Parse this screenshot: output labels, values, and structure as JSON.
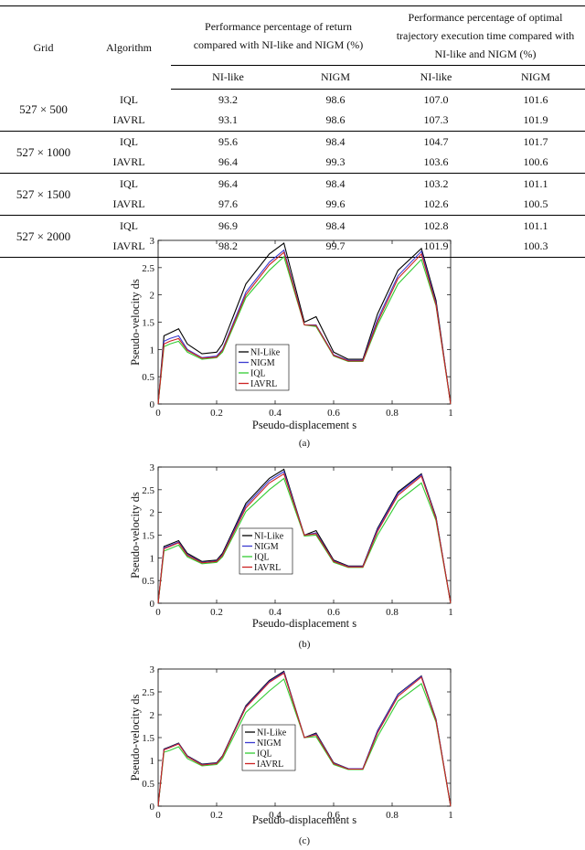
{
  "table": {
    "col_grid": "Grid",
    "col_algorithm": "Algorithm",
    "col_return": "Performance percentage of return compared with NI-like and NIGM (%)",
    "col_time": "Performance percentage of optimal trajectory execution time compared with NI-like and NIGM (%)",
    "sub_nilike_1": "NI-like",
    "sub_nigm_1": "NIGM",
    "sub_nilike_2": "NI-like",
    "sub_nigm_2": "NIGM",
    "groups": [
      {
        "grid": "527 × 500",
        "rows": [
          {
            "alg": "IQL",
            "r1": "93.2",
            "r2": "98.6",
            "t1": "107.0",
            "t2": "101.6"
          },
          {
            "alg": "IAVRL",
            "r1": "93.1",
            "r2": "98.6",
            "t1": "107.3",
            "t2": "101.9"
          }
        ]
      },
      {
        "grid": "527 × 1000",
        "rows": [
          {
            "alg": "IQL",
            "r1": "95.6",
            "r2": "98.4",
            "t1": "104.7",
            "t2": "101.7"
          },
          {
            "alg": "IAVRL",
            "r1": "96.4",
            "r2": "99.3",
            "t1": "103.6",
            "t2": "100.6"
          }
        ]
      },
      {
        "grid": "527 × 1500",
        "rows": [
          {
            "alg": "IQL",
            "r1": "96.4",
            "r2": "98.4",
            "t1": "103.2",
            "t2": "101.1"
          },
          {
            "alg": "IAVRL",
            "r1": "97.6",
            "r2": "99.6",
            "t1": "102.6",
            "t2": "100.5"
          }
        ]
      },
      {
        "grid": "527 × 2000",
        "rows": [
          {
            "alg": "IQL",
            "r1": "96.9",
            "r2": "98.4",
            "t1": "102.8",
            "t2": "101.1"
          },
          {
            "alg": "IAVRL",
            "r1": "98.2",
            "r2": "99.7",
            "t1": "101.9",
            "t2": "100.3"
          }
        ]
      }
    ]
  },
  "chart_data": [
    {
      "type": "line",
      "caption": "(a)",
      "xlabel": "Pseudo-displacement s",
      "ylabel": "Pseudo-velocity ds",
      "xlim": [
        0,
        1
      ],
      "ylim": [
        0,
        3
      ],
      "xticks": [
        "0",
        "0.2",
        "0.4",
        "0.6",
        "0.8",
        "1"
      ],
      "yticks": [
        "0",
        "0.5",
        "1",
        "1.5",
        "2",
        "2.5",
        "3"
      ],
      "legend_position": "left-center",
      "series": [
        {
          "name": "NI-Like",
          "color": "#000000",
          "x": [
            0,
            0.02,
            0.04,
            0.07,
            0.1,
            0.15,
            0.2,
            0.22,
            0.3,
            0.38,
            0.43,
            0.5,
            0.54,
            0.6,
            0.65,
            0.7,
            0.75,
            0.82,
            0.9,
            0.95,
            1
          ],
          "y": [
            0,
            1.25,
            1.3,
            1.38,
            1.1,
            0.92,
            0.95,
            1.1,
            2.2,
            2.75,
            2.95,
            1.5,
            1.6,
            0.95,
            0.82,
            0.82,
            1.65,
            2.45,
            2.85,
            1.9,
            0
          ]
        },
        {
          "name": "NIGM",
          "color": "#3a3ad0",
          "x": [
            0,
            0.02,
            0.04,
            0.07,
            0.1,
            0.15,
            0.2,
            0.22,
            0.3,
            0.38,
            0.43,
            0.5,
            0.54,
            0.6,
            0.65,
            0.7,
            0.75,
            0.82,
            0.9,
            0.95,
            1
          ],
          "y": [
            0,
            1.15,
            1.2,
            1.25,
            1.0,
            0.85,
            0.88,
            1.0,
            2.05,
            2.6,
            2.82,
            1.45,
            1.45,
            0.9,
            0.8,
            0.8,
            1.55,
            2.35,
            2.8,
            1.85,
            0
          ]
        },
        {
          "name": "IQL",
          "color": "#33cc33",
          "x": [
            0,
            0.02,
            0.04,
            0.07,
            0.1,
            0.15,
            0.2,
            0.22,
            0.3,
            0.38,
            0.43,
            0.5,
            0.54,
            0.6,
            0.65,
            0.7,
            0.75,
            0.82,
            0.9,
            0.95,
            1
          ],
          "y": [
            0,
            1.05,
            1.1,
            1.15,
            0.95,
            0.82,
            0.85,
            0.95,
            1.95,
            2.45,
            2.7,
            1.45,
            1.42,
            0.88,
            0.78,
            0.78,
            1.45,
            2.2,
            2.65,
            1.8,
            0
          ]
        },
        {
          "name": "IAVRL",
          "color": "#cc2222",
          "x": [
            0,
            0.02,
            0.04,
            0.07,
            0.1,
            0.15,
            0.2,
            0.22,
            0.3,
            0.38,
            0.43,
            0.5,
            0.54,
            0.6,
            0.65,
            0.7,
            0.75,
            0.82,
            0.9,
            0.95,
            1
          ],
          "y": [
            0,
            1.1,
            1.15,
            1.2,
            0.98,
            0.84,
            0.86,
            0.98,
            2.0,
            2.55,
            2.78,
            1.45,
            1.44,
            0.89,
            0.79,
            0.79,
            1.5,
            2.3,
            2.75,
            1.82,
            0
          ]
        }
      ]
    },
    {
      "type": "line",
      "caption": "(b)",
      "xlabel": "Pseudo-displacement s",
      "ylabel": "Pseudo-velocity ds",
      "xlim": [
        0,
        1
      ],
      "ylim": [
        0,
        3
      ],
      "xticks": [
        "0",
        "0.2",
        "0.4",
        "0.6",
        "0.8",
        "1"
      ],
      "yticks": [
        "0",
        "0.5",
        "1",
        "1.5",
        "2",
        "2.5",
        "3"
      ],
      "legend_position": "left-center",
      "series": [
        {
          "name": "NI-Like",
          "color": "#000000",
          "x": [
            0,
            0.02,
            0.04,
            0.07,
            0.1,
            0.15,
            0.2,
            0.22,
            0.3,
            0.38,
            0.43,
            0.5,
            0.54,
            0.6,
            0.65,
            0.7,
            0.75,
            0.82,
            0.9,
            0.95,
            1
          ],
          "y": [
            0,
            1.25,
            1.3,
            1.38,
            1.1,
            0.92,
            0.95,
            1.1,
            2.2,
            2.75,
            2.95,
            1.5,
            1.6,
            0.95,
            0.82,
            0.82,
            1.65,
            2.45,
            2.85,
            1.9,
            0
          ]
        },
        {
          "name": "NIGM",
          "color": "#3a3ad0",
          "x": [
            0,
            0.02,
            0.04,
            0.07,
            0.1,
            0.15,
            0.2,
            0.22,
            0.3,
            0.38,
            0.43,
            0.5,
            0.54,
            0.6,
            0.65,
            0.7,
            0.75,
            0.82,
            0.9,
            0.95,
            1
          ],
          "y": [
            0,
            1.22,
            1.27,
            1.35,
            1.07,
            0.9,
            0.93,
            1.07,
            2.15,
            2.7,
            2.9,
            1.5,
            1.55,
            0.93,
            0.81,
            0.81,
            1.62,
            2.42,
            2.83,
            1.88,
            0
          ]
        },
        {
          "name": "IQL",
          "color": "#33cc33",
          "x": [
            0,
            0.02,
            0.04,
            0.07,
            0.1,
            0.15,
            0.2,
            0.22,
            0.3,
            0.38,
            0.43,
            0.5,
            0.54,
            0.6,
            0.65,
            0.7,
            0.75,
            0.82,
            0.9,
            0.95,
            1
          ],
          "y": [
            0,
            1.15,
            1.2,
            1.28,
            1.02,
            0.87,
            0.9,
            1.02,
            2.02,
            2.5,
            2.75,
            1.48,
            1.5,
            0.9,
            0.79,
            0.79,
            1.5,
            2.25,
            2.65,
            1.82,
            0
          ]
        },
        {
          "name": "IAVRL",
          "color": "#cc2222",
          "x": [
            0,
            0.02,
            0.04,
            0.07,
            0.1,
            0.15,
            0.2,
            0.22,
            0.3,
            0.38,
            0.43,
            0.5,
            0.54,
            0.6,
            0.65,
            0.7,
            0.75,
            0.82,
            0.9,
            0.95,
            1
          ],
          "y": [
            0,
            1.2,
            1.25,
            1.33,
            1.05,
            0.89,
            0.92,
            1.05,
            2.1,
            2.65,
            2.85,
            1.5,
            1.53,
            0.92,
            0.8,
            0.8,
            1.58,
            2.38,
            2.8,
            1.86,
            0
          ]
        }
      ]
    },
    {
      "type": "line",
      "caption": "(c)",
      "xlabel": "Pseudo-displacement s",
      "ylabel": "Pseudo-velocity ds",
      "xlim": [
        0,
        1
      ],
      "ylim": [
        0,
        3
      ],
      "xticks": [
        "0",
        "0.2",
        "0.4",
        "0.6",
        "0.8",
        "1"
      ],
      "yticks": [
        "0",
        "0.5",
        "1",
        "1.5",
        "2",
        "2.5",
        "3"
      ],
      "legend_position": "lower-center",
      "series": [
        {
          "name": "NI-Like",
          "color": "#000000",
          "x": [
            0,
            0.02,
            0.04,
            0.07,
            0.1,
            0.15,
            0.2,
            0.22,
            0.3,
            0.38,
            0.43,
            0.5,
            0.54,
            0.6,
            0.65,
            0.7,
            0.75,
            0.82,
            0.9,
            0.95,
            1
          ],
          "y": [
            0,
            1.25,
            1.3,
            1.38,
            1.1,
            0.92,
            0.95,
            1.1,
            2.2,
            2.75,
            2.95,
            1.5,
            1.6,
            0.95,
            0.82,
            0.82,
            1.65,
            2.45,
            2.85,
            1.9,
            0
          ]
        },
        {
          "name": "NIGM",
          "color": "#3a3ad0",
          "x": [
            0,
            0.02,
            0.04,
            0.07,
            0.1,
            0.15,
            0.2,
            0.22,
            0.3,
            0.38,
            0.43,
            0.5,
            0.54,
            0.6,
            0.65,
            0.7,
            0.75,
            0.82,
            0.9,
            0.95,
            1
          ],
          "y": [
            0,
            1.24,
            1.29,
            1.37,
            1.09,
            0.91,
            0.94,
            1.09,
            2.18,
            2.73,
            2.93,
            1.5,
            1.58,
            0.94,
            0.82,
            0.82,
            1.64,
            2.44,
            2.84,
            1.89,
            0
          ]
        },
        {
          "name": "IQL",
          "color": "#33cc33",
          "x": [
            0,
            0.02,
            0.04,
            0.07,
            0.1,
            0.15,
            0.2,
            0.22,
            0.3,
            0.38,
            0.43,
            0.5,
            0.54,
            0.6,
            0.65,
            0.7,
            0.75,
            0.82,
            0.9,
            0.95,
            1
          ],
          "y": [
            0,
            1.18,
            1.22,
            1.3,
            1.04,
            0.88,
            0.91,
            1.04,
            2.05,
            2.52,
            2.78,
            1.5,
            1.52,
            0.91,
            0.8,
            0.8,
            1.52,
            2.3,
            2.68,
            1.84,
            0
          ]
        },
        {
          "name": "IAVRL",
          "color": "#cc2222",
          "x": [
            0,
            0.02,
            0.04,
            0.07,
            0.1,
            0.15,
            0.2,
            0.22,
            0.3,
            0.38,
            0.43,
            0.5,
            0.54,
            0.6,
            0.65,
            0.7,
            0.75,
            0.82,
            0.9,
            0.95,
            1
          ],
          "y": [
            0,
            1.23,
            1.28,
            1.36,
            1.08,
            0.9,
            0.93,
            1.08,
            2.16,
            2.71,
            2.91,
            1.5,
            1.56,
            0.93,
            0.81,
            0.81,
            1.6,
            2.4,
            2.82,
            1.87,
            0
          ]
        }
      ]
    }
  ]
}
